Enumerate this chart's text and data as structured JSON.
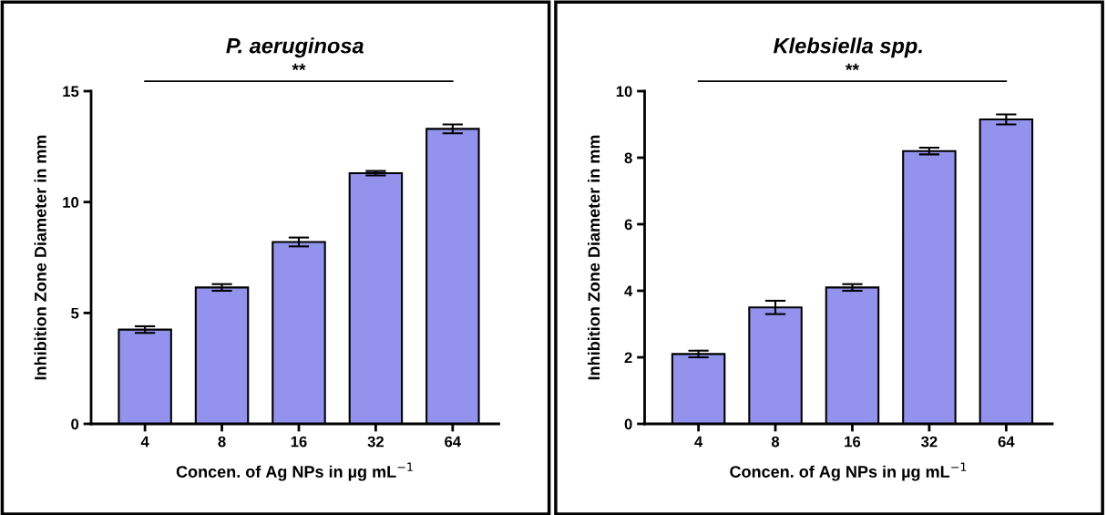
{
  "chart_data": [
    {
      "type": "bar",
      "title": "P. aeruginosa",
      "xlabel": "Concen. of Ag NPs in µg mL$^{−1}$",
      "ylabel": "Inhibition Zone Diameter in mm",
      "categories": [
        "4",
        "8",
        "16",
        "32",
        "64"
      ],
      "values": [
        4.25,
        6.15,
        8.2,
        11.3,
        13.3
      ],
      "errors": [
        0.15,
        0.15,
        0.2,
        0.1,
        0.2
      ],
      "color": "#9393ee",
      "ylim": [
        0,
        15
      ],
      "yticks": [
        0,
        5,
        10,
        15
      ],
      "grid": false,
      "legend": false,
      "annotations": [
        "**"
      ]
    },
    {
      "type": "bar",
      "title": "Klebsiella spp.",
      "xlabel": "Concen. of Ag NPs in µg mL$^{−1}$",
      "ylabel": "Inhibition Zone Diameter in mm",
      "categories": [
        "4",
        "8",
        "16",
        "32",
        "64"
      ],
      "values": [
        2.1,
        3.5,
        4.1,
        8.2,
        9.15
      ],
      "errors": [
        0.1,
        0.2,
        0.1,
        0.1,
        0.15
      ],
      "color": "#9393ee",
      "ylim": [
        0,
        10
      ],
      "yticks": [
        0,
        2,
        4,
        6,
        8,
        10
      ],
      "grid": false,
      "legend": false,
      "annotations": [
        "**"
      ]
    }
  ]
}
